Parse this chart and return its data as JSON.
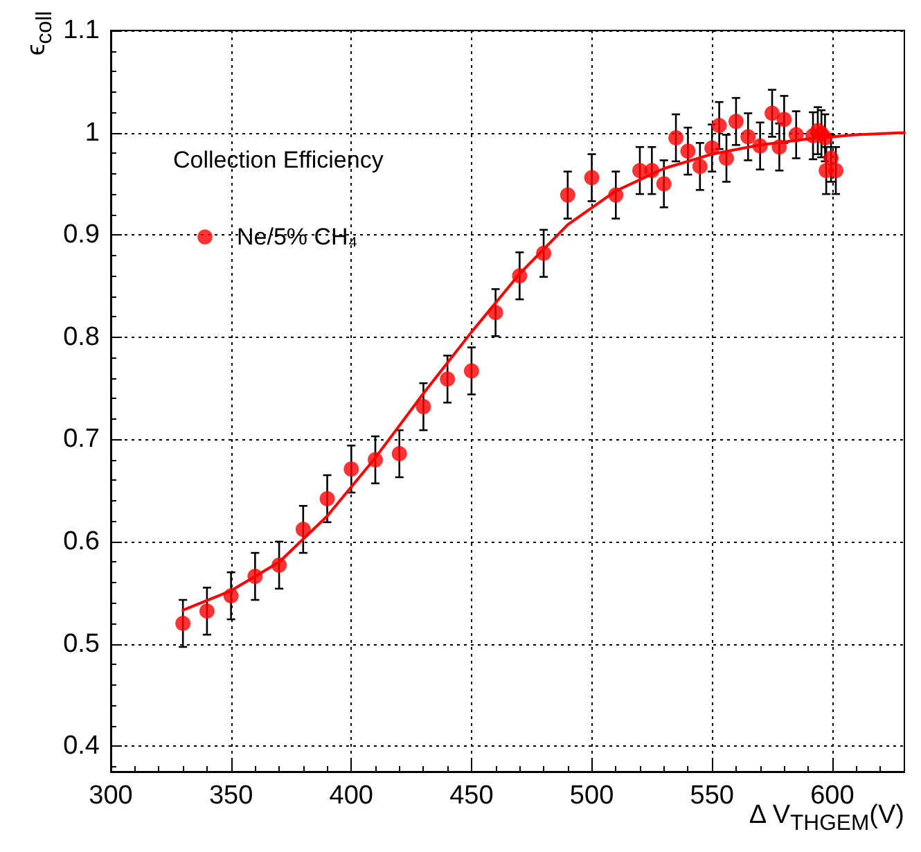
{
  "chart_data": {
    "type": "scatter",
    "xlabel": "Δ V$_{THGEM}$(V)",
    "ylabel": "ϵ$_{coll}$",
    "legend_title": "Collection Efficiency",
    "xlim": [
      300,
      630
    ],
    "ylim": [
      0.375,
      1.1
    ],
    "xticks": [
      300,
      350,
      400,
      450,
      500,
      550,
      600
    ],
    "yticks": [
      0.4,
      0.5,
      0.6,
      0.7,
      0.8,
      0.9,
      1,
      1.1
    ],
    "grid": true,
    "legend": "top left",
    "series": [
      {
        "name": "Ne/5% CH₄",
        "color": "#ff0000",
        "marker": "circle",
        "x": [
          330,
          340,
          350,
          360,
          370,
          380,
          390,
          400,
          410,
          420,
          430,
          440,
          450,
          460,
          470,
          480,
          490,
          500,
          510,
          520,
          525,
          530,
          535,
          540,
          545,
          550,
          553,
          556,
          560,
          565,
          570,
          575,
          578,
          580,
          585,
          592,
          594,
          595.5,
          597,
          599.5,
          597.5,
          601.5
        ],
        "values": [
          0.52,
          0.532,
          0.547,
          0.566,
          0.577,
          0.612,
          0.642,
          0.671,
          0.68,
          0.686,
          0.732,
          0.759,
          0.767,
          0.824,
          0.86,
          0.882,
          0.939,
          0.956,
          0.939,
          0.963,
          0.963,
          0.95,
          0.995,
          0.982,
          0.967,
          0.985,
          1.007,
          0.975,
          1.011,
          0.996,
          0.987,
          1.019,
          0.986,
          1.013,
          0.998,
          0.997,
          1.002,
          0.999,
          0.995,
          0.975,
          0.963,
          0.963
        ],
        "errors": [
          0.023,
          0.023,
          0.023,
          0.023,
          0.023,
          0.023,
          0.023,
          0.023,
          0.023,
          0.023,
          0.023,
          0.023,
          0.023,
          0.023,
          0.023,
          0.023,
          0.023,
          0.023,
          0.023,
          0.023,
          0.023,
          0.023,
          0.023,
          0.023,
          0.023,
          0.023,
          0.023,
          0.023,
          0.023,
          0.023,
          0.023,
          0.023,
          0.023,
          0.023,
          0.023,
          0.023,
          0.023,
          0.023,
          0.023,
          0.023,
          0.023,
          0.023
        ]
      },
      {
        "type": "line",
        "color": "#ff0000",
        "marker": "none",
        "x": [
          330,
          350,
          370,
          390,
          410,
          430,
          450,
          470,
          490,
          510,
          530,
          550,
          570,
          590,
          610,
          630
        ],
        "values": [
          0.533,
          0.552,
          0.58,
          0.625,
          0.682,
          0.745,
          0.805,
          0.862,
          0.91,
          0.943,
          0.965,
          0.979,
          0.988,
          0.994,
          0.998,
          1.0
        ]
      }
    ]
  }
}
